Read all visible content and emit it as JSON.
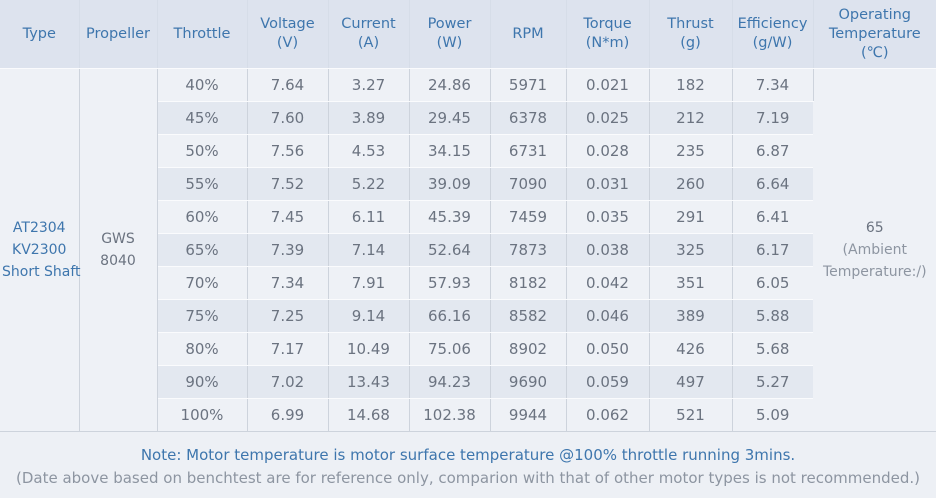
{
  "colors": {
    "header_bg": "#dde3ee",
    "header_text": "#3e76ad",
    "row_light": "#eef1f6",
    "row_dark": "#e3e8f0",
    "cell_text": "#6b7380",
    "muted_text": "#8d95a1",
    "border_vertical": "#cdd3dc",
    "border_horizontal": "#fafbfd",
    "notes_bg": "#edf0f5"
  },
  "table": {
    "columns": [
      {
        "id": "type",
        "lines": [
          "Type"
        ]
      },
      {
        "id": "propeller",
        "lines": [
          "Propeller"
        ]
      },
      {
        "id": "throttle",
        "lines": [
          "Throttle"
        ]
      },
      {
        "id": "voltage",
        "lines": [
          "Voltage",
          "(V)"
        ]
      },
      {
        "id": "current",
        "lines": [
          "Current",
          "(A)"
        ]
      },
      {
        "id": "power",
        "lines": [
          "Power",
          "(W)"
        ]
      },
      {
        "id": "rpm",
        "lines": [
          "RPM"
        ]
      },
      {
        "id": "torque",
        "lines": [
          "Torque",
          "(N*m)"
        ]
      },
      {
        "id": "thrust",
        "lines": [
          "Thrust",
          "(g)"
        ]
      },
      {
        "id": "efficiency",
        "lines": [
          "Efficiency",
          "(g/W)"
        ]
      },
      {
        "id": "operating-temperature",
        "lines": [
          "Operating",
          "Temperature",
          "(℃)"
        ]
      }
    ],
    "type_lines": [
      "AT2304",
      "KV2300",
      "Short Shaft"
    ],
    "propeller_lines": [
      "GWS",
      "8040"
    ],
    "operating_temperature_lines": [
      "65",
      "(Ambient",
      "Temperature:/)"
    ],
    "rows": [
      {
        "throttle": "40%",
        "voltage": "7.64",
        "current": "3.27",
        "power": "24.86",
        "rpm": "5971",
        "torque": "0.021",
        "thrust": "182",
        "efficiency": "7.34"
      },
      {
        "throttle": "45%",
        "voltage": "7.60",
        "current": "3.89",
        "power": "29.45",
        "rpm": "6378",
        "torque": "0.025",
        "thrust": "212",
        "efficiency": "7.19"
      },
      {
        "throttle": "50%",
        "voltage": "7.56",
        "current": "4.53",
        "power": "34.15",
        "rpm": "6731",
        "torque": "0.028",
        "thrust": "235",
        "efficiency": "6.87"
      },
      {
        "throttle": "55%",
        "voltage": "7.52",
        "current": "5.22",
        "power": "39.09",
        "rpm": "7090",
        "torque": "0.031",
        "thrust": "260",
        "efficiency": "6.64"
      },
      {
        "throttle": "60%",
        "voltage": "7.45",
        "current": "6.11",
        "power": "45.39",
        "rpm": "7459",
        "torque": "0.035",
        "thrust": "291",
        "efficiency": "6.41"
      },
      {
        "throttle": "65%",
        "voltage": "7.39",
        "current": "7.14",
        "power": "52.64",
        "rpm": "7873",
        "torque": "0.038",
        "thrust": "325",
        "efficiency": "6.17"
      },
      {
        "throttle": "70%",
        "voltage": "7.34",
        "current": "7.91",
        "power": "57.93",
        "rpm": "8182",
        "torque": "0.042",
        "thrust": "351",
        "efficiency": "6.05"
      },
      {
        "throttle": "75%",
        "voltage": "7.25",
        "current": "9.14",
        "power": "66.16",
        "rpm": "8582",
        "torque": "0.046",
        "thrust": "389",
        "efficiency": "5.88"
      },
      {
        "throttle": "80%",
        "voltage": "7.17",
        "current": "10.49",
        "power": "75.06",
        "rpm": "8902",
        "torque": "0.050",
        "thrust": "426",
        "efficiency": "5.68"
      },
      {
        "throttle": "90%",
        "voltage": "7.02",
        "current": "13.43",
        "power": "94.23",
        "rpm": "9690",
        "torque": "0.059",
        "thrust": "497",
        "efficiency": "5.27"
      },
      {
        "throttle": "100%",
        "voltage": "6.99",
        "current": "14.68",
        "power": "102.38",
        "rpm": "9944",
        "torque": "0.062",
        "thrust": "521",
        "efficiency": "5.09"
      }
    ]
  },
  "notes": {
    "line1": "Note: Motor temperature is motor surface temperature @100% throttle running 3mins.",
    "line2": "(Date above based on benchtest are for reference only, comparion with that of other motor types is not recommended.)"
  }
}
